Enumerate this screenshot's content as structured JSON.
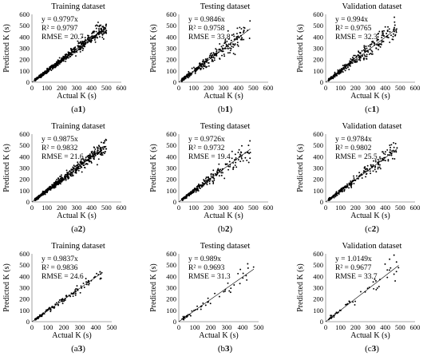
{
  "chart_data": [
    {
      "type": "scatter",
      "panel": "a1",
      "title": "Training dataset",
      "xlabel": "Actual K (s)",
      "ylabel": "Predicted K (s)",
      "xlim": [
        0,
        600
      ],
      "ylim": [
        0,
        600
      ],
      "xticks": [
        0,
        100,
        200,
        300,
        400,
        500,
        600
      ],
      "yticks": [
        0,
        100,
        200,
        300,
        400,
        500,
        600
      ],
      "trendline": "y = 0.9797x",
      "slope": 0.9797,
      "r2": "R² = 0.9797",
      "rmse": "RMSE = 20.7",
      "caption_prefix": "(a",
      "caption_bold": "1",
      "caption_suffix": ")",
      "n_points": 600,
      "x_range": [
        20,
        500
      ],
      "noise": 0.07,
      "seed": 11
    },
    {
      "type": "scatter",
      "panel": "b1",
      "title": "Testing dataset",
      "xlabel": "Actual K (s)",
      "ylabel": "Predicted K (s)",
      "xlim": [
        0,
        600
      ],
      "ylim": [
        0,
        600
      ],
      "xticks": [
        0,
        100,
        200,
        300,
        400,
        500,
        600
      ],
      "yticks": [
        0,
        100,
        200,
        300,
        400,
        500,
        600
      ],
      "trendline": "y = 0.9846x",
      "slope": 0.9846,
      "r2": "R² = 0.9758",
      "rmse": "RMSE = 33.8",
      "caption_prefix": "(b",
      "caption_bold": "1",
      "caption_suffix": ")",
      "n_points": 300,
      "x_range": [
        20,
        480
      ],
      "noise": 0.12,
      "seed": 23
    },
    {
      "type": "scatter",
      "panel": "c1",
      "title": "Validation dataset",
      "xlabel": "Actual K (s)",
      "ylabel": "Predicted K (s)",
      "xlim": [
        0,
        600
      ],
      "ylim": [
        0,
        600
      ],
      "xticks": [
        0,
        100,
        200,
        300,
        400,
        500,
        600
      ],
      "yticks": [
        0,
        100,
        200,
        300,
        400,
        500,
        600
      ],
      "trendline": "y = 0.994x",
      "slope": 0.994,
      "r2": "R² = 0.9765",
      "rmse": "RMSE = 32.3",
      "caption_prefix": "(c",
      "caption_bold": "1",
      "caption_suffix": ")",
      "n_points": 300,
      "x_range": [
        20,
        480
      ],
      "noise": 0.12,
      "seed": 37
    },
    {
      "type": "scatter",
      "panel": "a2",
      "title": "Training dataset",
      "xlabel": "Actual K (s)",
      "ylabel": "Predicted K (s)",
      "xlim": [
        0,
        600
      ],
      "ylim": [
        0,
        600
      ],
      "xticks": [
        0,
        100,
        200,
        300,
        400,
        500,
        600
      ],
      "yticks": [
        0,
        100,
        200,
        300,
        400,
        500,
        600
      ],
      "trendline": "y = 0.9875x",
      "slope": 0.9875,
      "r2": "R² = 0.9832",
      "rmse": "RMSE = 21.6",
      "caption_prefix": "(a",
      "caption_bold": "2",
      "caption_suffix": ")",
      "n_points": 600,
      "x_range": [
        20,
        500
      ],
      "noise": 0.08,
      "seed": 41
    },
    {
      "type": "scatter",
      "panel": "b2",
      "title": "Testing dataset",
      "xlabel": "Actual K (s)",
      "ylabel": "Predicted K (s)",
      "xlim": [
        0,
        600
      ],
      "ylim": [
        0,
        600
      ],
      "xticks": [
        0,
        100,
        200,
        300,
        400,
        500,
        600
      ],
      "yticks": [
        0,
        100,
        200,
        300,
        400,
        500,
        600
      ],
      "trendline": "y = 0.9726x",
      "slope": 0.9726,
      "r2": "R² = 0.9732",
      "rmse": "RMSE = 19.4",
      "caption_prefix": "(b",
      "caption_bold": "2",
      "caption_suffix": ")",
      "n_points": 260,
      "x_range": [
        20,
        480
      ],
      "noise": 0.1,
      "seed": 53
    },
    {
      "type": "scatter",
      "panel": "c2",
      "title": "Validation dataset",
      "xlabel": "Actual K (s)",
      "ylabel": "Predicted K (s)",
      "xlim": [
        0,
        600
      ],
      "ylim": [
        0,
        600
      ],
      "xticks": [
        0,
        100,
        200,
        300,
        400,
        500,
        600
      ],
      "yticks": [
        0,
        100,
        200,
        300,
        400,
        500,
        600
      ],
      "trendline": "y = 0.9784x",
      "slope": 0.9784,
      "r2": "R² = 0.9802",
      "rmse": "RMSE = 25.5",
      "caption_prefix": "(c",
      "caption_bold": "2",
      "caption_suffix": ")",
      "n_points": 260,
      "x_range": [
        20,
        480
      ],
      "noise": 0.1,
      "seed": 67
    },
    {
      "type": "scatter",
      "panel": "a3",
      "title": "Training dataset",
      "xlabel": "Actual K (s)",
      "ylabel": "Predicted K (s)",
      "xlim": [
        0,
        500
      ],
      "ylim": [
        0,
        600
      ],
      "xticks": [
        0,
        100,
        200,
        300,
        400,
        500
      ],
      "yticks": [
        0,
        100,
        200,
        300,
        400,
        500,
        600
      ],
      "trendline": "y = 0.9837x",
      "slope": 0.9837,
      "r2": "R² = 0.9836",
      "rmse": "RMSE = 24.6",
      "caption_prefix": "(a",
      "caption_bold": "3",
      "caption_suffix": ")",
      "n_points": 140,
      "x_range": [
        20,
        440
      ],
      "noise": 0.08,
      "seed": 71
    },
    {
      "type": "scatter",
      "panel": "b3",
      "title": "Testing dataset",
      "xlabel": "Actual K (s)",
      "ylabel": "Predicted K (s)",
      "xlim": [
        0,
        500
      ],
      "ylim": [
        0,
        600
      ],
      "xticks": [
        0,
        100,
        200,
        300,
        400,
        500
      ],
      "yticks": [
        0,
        100,
        200,
        300,
        400,
        500,
        600
      ],
      "trendline": "y = 0.989x",
      "slope": 0.989,
      "r2": "R² = 0.9693",
      "rmse": "RMSE = 31.3",
      "caption_prefix": "(b",
      "caption_bold": "3",
      "caption_suffix": ")",
      "n_points": 55,
      "x_range": [
        20,
        470
      ],
      "noise": 0.13,
      "seed": 83
    },
    {
      "type": "scatter",
      "panel": "c3",
      "title": "Validation dataset",
      "xlabel": "Actual K (s)",
      "ylabel": "Predicted K (s)",
      "xlim": [
        0,
        600
      ],
      "ylim": [
        0,
        600
      ],
      "xticks": [
        0,
        100,
        200,
        300,
        400,
        500,
        600
      ],
      "yticks": [
        0,
        100,
        200,
        300,
        400,
        500,
        600
      ],
      "trendline": "y = 1.0149x",
      "slope": 1.0149,
      "r2": "R² = 0.9677",
      "rmse": "RMSE = 33.7",
      "caption_prefix": "(c",
      "caption_bold": "3",
      "caption_suffix": ")",
      "n_points": 55,
      "x_range": [
        20,
        490
      ],
      "noise": 0.13,
      "seed": 97
    }
  ]
}
